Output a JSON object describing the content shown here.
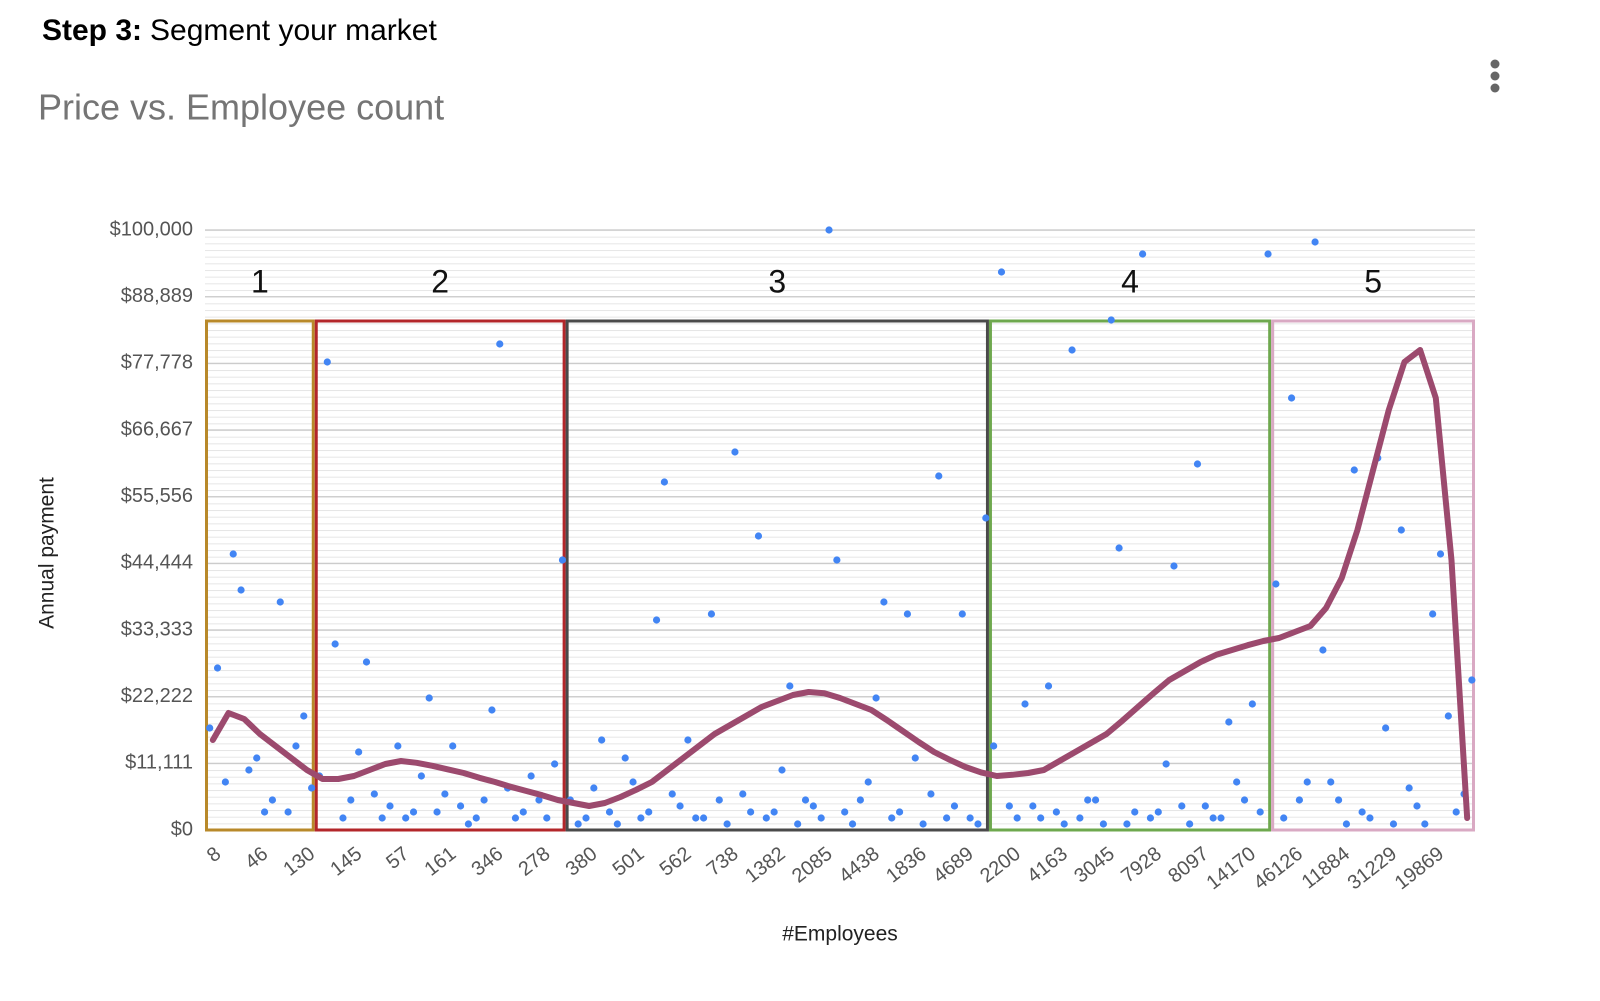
{
  "heading": {
    "step": "Step 3:",
    "text": "Segment your market"
  },
  "chart_data": {
    "type": "scatter",
    "title": "Price vs. Employee count",
    "x_label": "#Employees",
    "y_label": "Annual payment",
    "categories": [
      "8",
      null,
      null,
      "46",
      null,
      null,
      "130",
      null,
      null,
      "145",
      null,
      null,
      "57",
      null,
      null,
      "161",
      null,
      null,
      "346",
      null,
      null,
      "278",
      null,
      null,
      "380",
      null,
      null,
      "501",
      null,
      null,
      "562",
      null,
      null,
      "738",
      null,
      null,
      "1382",
      null,
      null,
      "2085",
      null,
      null,
      "4438",
      null,
      null,
      "1836",
      null,
      null,
      "4689",
      null,
      null,
      "2200",
      null,
      null,
      "4163",
      null,
      null,
      "3045",
      null,
      null,
      "7928",
      null,
      null,
      "8097",
      null,
      null,
      "14170",
      null,
      null,
      "46126",
      null,
      null,
      "11884",
      null,
      null,
      "31229",
      null,
      null,
      "19869",
      null,
      null
    ],
    "ylim": [
      0,
      100000
    ],
    "yticks": [
      {
        "value": 0,
        "label": "$0"
      },
      {
        "value": 11111,
        "label": "$11,111"
      },
      {
        "value": 22222,
        "label": "$22,222"
      },
      {
        "value": 33333,
        "label": "$33,333"
      },
      {
        "value": 44444,
        "label": "$44,444"
      },
      {
        "value": 55556,
        "label": "$55,556"
      },
      {
        "value": 66667,
        "label": "$66,667"
      },
      {
        "value": 77778,
        "label": "$77,778"
      },
      {
        "value": 88889,
        "label": "$88,889"
      },
      {
        "value": 100000,
        "label": "$100,000"
      }
    ],
    "grid": true,
    "series": [
      {
        "color": "#4285f4",
        "values": [
          17000,
          8000,
          40000,
          12000,
          5000,
          3000,
          19000,
          9000,
          31000,
          5000,
          28000,
          2000,
          14000,
          3000,
          22000,
          6000,
          4000,
          2000,
          20000,
          7000,
          3000,
          5000,
          11000,
          5000,
          2000,
          15000,
          1000,
          8000,
          3000,
          58000,
          4000,
          2000,
          36000,
          1000,
          6000,
          49000,
          3000,
          24000,
          5000,
          2000,
          45000,
          1000,
          8000,
          38000,
          3000,
          12000,
          6000,
          2000,
          36000,
          1000,
          14000,
          4000,
          21000,
          2000,
          3000,
          80000,
          5000,
          1000,
          47000,
          3000,
          2000,
          11000,
          4000,
          61000,
          2000,
          18000,
          5000,
          3000,
          41000,
          72000,
          8000,
          30000,
          5000,
          60000,
          2000,
          17000,
          50000,
          4000,
          36000,
          19000,
          6000
        ]
      },
      {
        "color": "#4285f4",
        "values": [
          27000,
          46000,
          10000,
          3000,
          38000,
          14000,
          7000,
          78000,
          2000,
          13000,
          6000,
          4000,
          2000,
          9000,
          3000,
          14000,
          1000,
          5000,
          81000,
          2000,
          9000,
          2000,
          45000,
          1000,
          7000,
          3000,
          12000,
          2000,
          35000,
          6000,
          15000,
          2000,
          5000,
          63000,
          3000,
          2000,
          10000,
          1000,
          4000,
          100000,
          3000,
          5000,
          22000,
          2000,
          36000,
          1000,
          59000,
          4000,
          2000,
          52000,
          93000,
          2000,
          4000,
          24000,
          1000,
          2000,
          5000,
          85000,
          1000,
          96000,
          3000,
          44000,
          1000,
          4000,
          2000,
          8000,
          21000,
          96000,
          2000,
          5000,
          98000,
          8000,
          1000,
          3000,
          62000,
          1000,
          7000,
          1000,
          46000,
          3000,
          25000
        ]
      },
      {
        "color": "#9c4a6e",
        "style": "trendline",
        "values": [
          15000,
          19500,
          18500,
          16000,
          14000,
          12000,
          10000,
          8500,
          8500,
          9000,
          10000,
          11000,
          11500,
          11200,
          10700,
          10100,
          9500,
          8700,
          8000,
          7200,
          6500,
          5800,
          5000,
          4500,
          4000,
          4500,
          5500,
          6700,
          8000,
          10000,
          12000,
          14000,
          16000,
          17500,
          19000,
          20500,
          21500,
          22500,
          23000,
          22800,
          22000,
          21000,
          20000,
          18300,
          16500,
          14700,
          13000,
          11700,
          10500,
          9600,
          9000,
          9200,
          9500,
          10000,
          11500,
          13000,
          14500,
          16000,
          18200,
          20500,
          22800,
          25000,
          26500,
          28000,
          29200,
          30000,
          30800,
          31500,
          32000,
          33000,
          34000,
          37000,
          42000,
          50000,
          60000,
          70000,
          78000,
          80000,
          72000,
          45000,
          2000
        ]
      }
    ],
    "segments": [
      {
        "label": "1",
        "color": "#b8892a",
        "start": 0,
        "end": 7
      },
      {
        "label": "2",
        "color": "#b3262a",
        "start": 7,
        "end": 23
      },
      {
        "label": "3",
        "color": "#4a4a4a",
        "start": 23,
        "end": 50
      },
      {
        "label": "4",
        "color": "#6ea84e",
        "start": 50,
        "end": 68
      },
      {
        "label": "5",
        "color": "#d9a9c3",
        "start": 68,
        "end": 81
      }
    ]
  }
}
